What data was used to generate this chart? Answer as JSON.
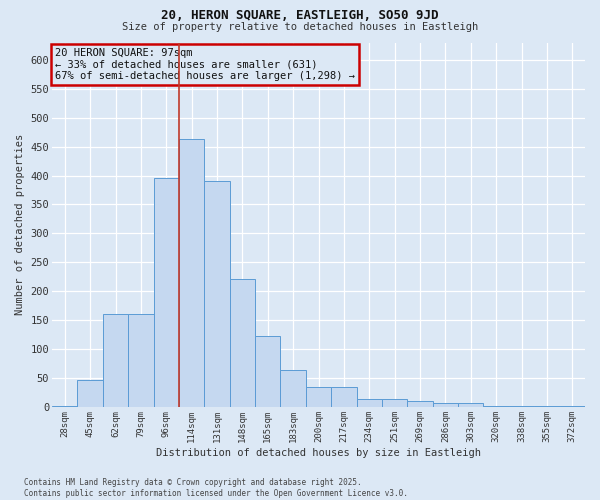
{
  "title1": "20, HERON SQUARE, EASTLEIGH, SO50 9JD",
  "title2": "Size of property relative to detached houses in Eastleigh",
  "xlabel": "Distribution of detached houses by size in Eastleigh",
  "ylabel": "Number of detached properties",
  "categories": [
    "28sqm",
    "45sqm",
    "62sqm",
    "79sqm",
    "96sqm",
    "114sqm",
    "131sqm",
    "148sqm",
    "165sqm",
    "183sqm",
    "200sqm",
    "217sqm",
    "234sqm",
    "251sqm",
    "269sqm",
    "286sqm",
    "303sqm",
    "320sqm",
    "338sqm",
    "355sqm",
    "372sqm"
  ],
  "values": [
    2,
    46,
    160,
    160,
    395,
    463,
    390,
    222,
    122,
    63,
    35,
    35,
    14,
    14,
    10,
    6,
    6,
    2,
    2,
    1,
    1
  ],
  "bar_color": "#c5d8f0",
  "bar_edge_color": "#5b9bd5",
  "bg_color": "#dce8f5",
  "grid_color": "#ffffff",
  "vline_color": "#c0392b",
  "vline_index": 5,
  "annotation_title": "20 HERON SQUARE: 97sqm",
  "annotation_line1": "← 33% of detached houses are smaller (631)",
  "annotation_line2": "67% of semi-detached houses are larger (1,298) →",
  "annotation_box_edgecolor": "#cc0000",
  "ylim": [
    0,
    630
  ],
  "yticks": [
    0,
    50,
    100,
    150,
    200,
    250,
    300,
    350,
    400,
    450,
    500,
    550,
    600
  ],
  "footer1": "Contains HM Land Registry data © Crown copyright and database right 2025.",
  "footer2": "Contains public sector information licensed under the Open Government Licence v3.0."
}
